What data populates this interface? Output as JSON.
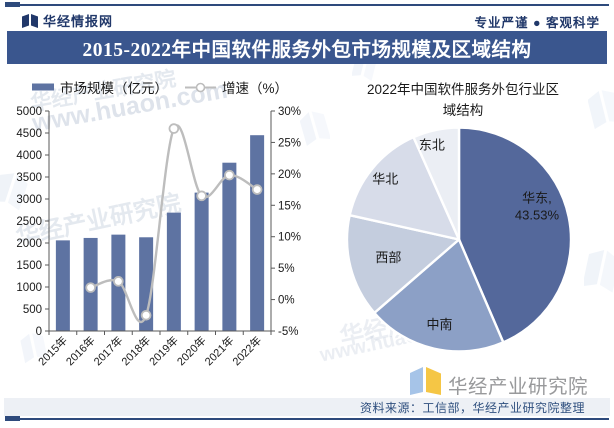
{
  "header": {
    "brand": "华经情报网",
    "tagline": "专业严谨 ● 客观科学"
  },
  "title_bar": {
    "text": "2015-2022年中国软件服务外包市场规模及区域结构"
  },
  "colors": {
    "accent_navy": "#3a568e",
    "rule_navy": "#2e4a7c",
    "bar_fill": "#5e73a2",
    "line_grey": "#bdbdbd",
    "pie_east": "#54689b",
    "pie_south": "#8ca0c6",
    "pie_west": "#c4cdde",
    "pie_north": "#d7dce9",
    "pie_northeast": "#ebeef4"
  },
  "chart_data": [
    {
      "type": "bar+line",
      "categories": [
        "2015年",
        "2016年",
        "2017年",
        "2018年",
        "2019年",
        "2020年",
        "2021年",
        "2022年"
      ],
      "series": [
        {
          "name": "市场规模（亿元）",
          "type": "bar",
          "axis": "left",
          "color": "#5e73a2",
          "values": [
            2060,
            2115,
            2190,
            2130,
            2690,
            3145,
            3825,
            4450
          ]
        },
        {
          "name": "增速（%）",
          "type": "line",
          "axis": "right",
          "color": "#bdbdbd",
          "values": [
            null,
            1.9,
            2.9,
            -2.5,
            27.2,
            16.5,
            19.8,
            17.5
          ]
        }
      ],
      "left_axis": {
        "min": 0,
        "max": 5000,
        "step": 500,
        "labels": [
          "0",
          "500",
          "1000",
          "1500",
          "2000",
          "2500",
          "3000",
          "3500",
          "4000",
          "4500",
          "5000"
        ]
      },
      "right_axis": {
        "min": -5,
        "max": 30,
        "step": 5,
        "labels": [
          "-5%",
          "0%",
          "5%",
          "10%",
          "15%",
          "20%",
          "25%",
          "30%"
        ]
      },
      "grid": false,
      "legend_position": "top"
    },
    {
      "type": "pie",
      "title": "2022年中国软件服务外包行业区域结构",
      "title_lines": [
        "2022年中国软件服务外包行业区",
        "域结构"
      ],
      "start_angle_deg": 0,
      "direction": "clockwise",
      "slices": [
        {
          "label": "华东",
          "value": 43.53,
          "color": "#54689b",
          "data_label": "华东, 43.53%",
          "show_value": true
        },
        {
          "label": "中南",
          "value": 20.1,
          "color": "#8ca0c6",
          "data_label": "中南",
          "show_value": false
        },
        {
          "label": "西部",
          "value": 14.85,
          "color": "#c4cdde",
          "data_label": "西部",
          "show_value": false
        },
        {
          "label": "华北",
          "value": 14.86,
          "color": "#d7dce9",
          "data_label": "华北",
          "show_value": false
        },
        {
          "label": "东北",
          "value": 6.66,
          "color": "#ebeef4",
          "data_label": "东北",
          "show_value": false
        }
      ]
    }
  ],
  "footer": {
    "brand": "华经产业研究院",
    "source": "资料来源：工信部，华经产业研究院整理"
  },
  "watermarks": {
    "site": "www.huaon.com",
    "company": "华经产业研究院"
  }
}
